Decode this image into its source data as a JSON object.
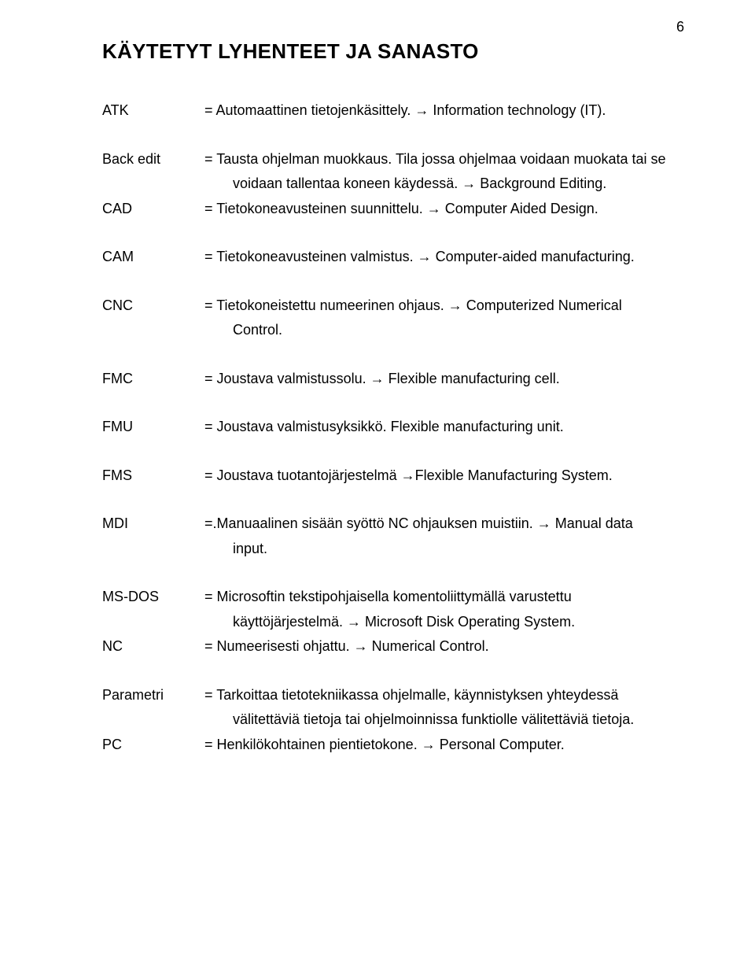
{
  "page_number": "6",
  "heading": "KÄYTETYT LYHENTEET JA SANASTO",
  "entries": [
    {
      "term": "ATK",
      "def": "= Automaattinen tietojenkäsittely. → Information technology (IT)."
    },
    {
      "term": "Back edit",
      "def": "= Tausta ohjelman muokkaus. Tila jossa ohjelmaa voidaan muokata tai se",
      "indent": "voidaan tallentaa koneen käydessä. → Background Editing.",
      "tight": true
    },
    {
      "term": "CAD",
      "def": "= Tietokoneavusteinen suunnittelu. → Computer Aided Design."
    },
    {
      "term": "CAM",
      "def": "= Tietokoneavusteinen valmistus. → Computer-aided manufacturing."
    },
    {
      "term": "CNC",
      "def": "= Tietokoneistettu numeerinen ohjaus. → Computerized Numerical",
      "indent": "Control."
    },
    {
      "term": "FMC",
      "def": "= Joustava valmistussolu. → Flexible manufacturing cell."
    },
    {
      "term": "FMU",
      "def": "= Joustava valmistusyksikkö. Flexible manufacturing unit."
    },
    {
      "term": "FMS",
      "def": "= Joustava tuotantojärjestelmä →Flexible Manufacturing System."
    },
    {
      "term": "MDI",
      "def": "=.Manuaalinen sisään syöttö NC ohjauksen muistiin. → Manual data",
      "indent": "input."
    },
    {
      "term": "MS-DOS",
      "def": "= Microsoftin tekstipohjaisella komentoliittymällä varustettu",
      "indent": "käyttöjärjestelmä. → Microsoft Disk Operating System.",
      "tight": true
    },
    {
      "term": "NC",
      "def": "= Numeerisesti ohjattu. → Numerical Control."
    },
    {
      "term": "Parametri",
      "def": "= Tarkoittaa tietotekniikassa ohjelmalle, käynnistyksen yhteydessä",
      "indent": "välitettäviä tietoja tai ohjelmoinnissa funktiolle välitettäviä tietoja.",
      "tight": true
    },
    {
      "term": "PC",
      "def": "= Henkilökohtainen pientietokone. → Personal Computer."
    }
  ]
}
